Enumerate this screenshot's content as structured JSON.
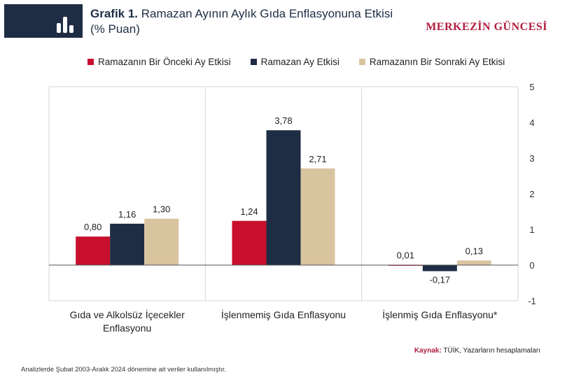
{
  "header": {
    "title_prefix": "Grafik 1.",
    "title_text": "Ramazan Ayının Aylık Gıda Enflasyonuna Etkisi",
    "subtitle": "(% Puan)",
    "brand": "MERKEZİN GÜNCESİ",
    "icon": "bar-chart-icon"
  },
  "chart_data": {
    "type": "bar",
    "categories": [
      [
        "Gıda ve Alkolsüz İçecekler",
        "Enflasyonu"
      ],
      [
        "İşlenmemiş Gıda Enflasyonu"
      ],
      [
        "İşlenmiş Gıda Enflasyonu*"
      ]
    ],
    "series": [
      {
        "name": "Ramazanın Bir Önceki Ay Etkisi",
        "color": "#c8102e",
        "values": [
          0.8,
          1.24,
          0.01
        ],
        "labels": [
          "0,80",
          "1,24",
          "0,01"
        ]
      },
      {
        "name": "Ramazan Ay Etkisi",
        "color": "#1e2d44",
        "values": [
          1.16,
          3.78,
          -0.17
        ],
        "labels": [
          "1,16",
          "3,78",
          "-0,17"
        ]
      },
      {
        "name": "Ramazanın Bir Sonraki Ay Etkisi",
        "color": "#d9c4a0",
        "values": [
          1.3,
          2.71,
          0.13
        ],
        "labels": [
          "1,30",
          "2,71",
          "0,13"
        ]
      }
    ],
    "ylim": [
      -1,
      5
    ],
    "yticks": [
      -1,
      0,
      1,
      2,
      3,
      4,
      5
    ],
    "y_axis_side": "right",
    "grid": "vertical-category-separators",
    "legend": "top"
  },
  "source": {
    "label": "Kaynak:",
    "text": "TÜİK, Yazarların hesaplamaları"
  },
  "footnote": "Analizlerde Şubat 2003-Aralık 2024 dönemine ait veriler kullanılmıştır."
}
